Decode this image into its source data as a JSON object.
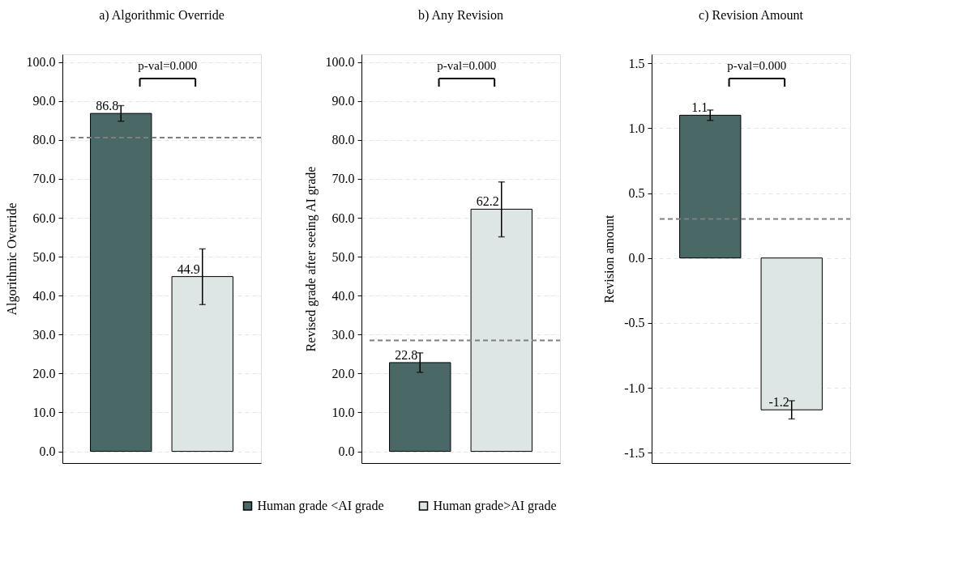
{
  "chart_data": [
    {
      "type": "bar",
      "title": "a) Algorithmic Override",
      "ylabel": "Algorithmic Override",
      "categories": [
        null
      ],
      "legend": "bottom",
      "grid": "y",
      "tick_labels": "y",
      "ylim": [
        -3,
        102
      ],
      "yticks": [
        {
          "value": 0,
          "label": "0.0"
        },
        {
          "value": 10,
          "label": "10.0"
        },
        {
          "value": 20,
          "label": "20.0"
        },
        {
          "value": 30,
          "label": "30.0"
        },
        {
          "value": 40,
          "label": "40.0"
        },
        {
          "value": 50,
          "label": "50.0"
        },
        {
          "value": 60,
          "label": "60.0"
        },
        {
          "value": 70,
          "label": "70.0"
        },
        {
          "value": 80,
          "label": "80.0"
        },
        {
          "value": 90,
          "label": "90.0"
        },
        {
          "value": 100,
          "label": "100.0"
        }
      ],
      "series": [
        {
          "name": "Human grade <AI grade",
          "color": "#4a6966",
          "values": [
            86.8
          ],
          "errors": [
            [
              84.8,
              88.8
            ]
          ],
          "value_labels": [
            "86.8"
          ]
        },
        {
          "name": "Human grade>AI grade",
          "color": "#dde6e4",
          "values": [
            44.9
          ],
          "errors": [
            [
              37.7,
              52.0
            ]
          ],
          "value_labels": [
            "44.9"
          ]
        }
      ],
      "ref_lines": [
        {
          "axis": "y",
          "value": 80.6,
          "color": "#7f7f7f",
          "line_style": "dashed"
        }
      ],
      "annotations": [
        "p-val=0.000"
      ]
    },
    {
      "type": "bar",
      "title": "b) Any Revision",
      "ylabel": "Revised grade after seeing AI grade",
      "categories": [
        null
      ],
      "legend": "bottom",
      "grid": "y",
      "tick_labels": "y",
      "ylim": [
        -3,
        102
      ],
      "yticks": [
        {
          "value": 0,
          "label": "0.0"
        },
        {
          "value": 10,
          "label": "10.0"
        },
        {
          "value": 20,
          "label": "20.0"
        },
        {
          "value": 30,
          "label": "30.0"
        },
        {
          "value": 40,
          "label": "40.0"
        },
        {
          "value": 50,
          "label": "50.0"
        },
        {
          "value": 60,
          "label": "60.0"
        },
        {
          "value": 70,
          "label": "70.0"
        },
        {
          "value": 80,
          "label": "80.0"
        },
        {
          "value": 90,
          "label": "90.0"
        },
        {
          "value": 100,
          "label": "100.0"
        }
      ],
      "series": [
        {
          "name": "Human grade <AI grade",
          "color": "#4a6966",
          "values": [
            22.8
          ],
          "errors": [
            [
              20.3,
              25.3
            ]
          ],
          "value_labels": [
            "22.8"
          ]
        },
        {
          "name": "Human grade>AI grade",
          "color": "#dde6e4",
          "values": [
            62.2
          ],
          "errors": [
            [
              55.1,
              69.2
            ]
          ],
          "value_labels": [
            "62.2"
          ]
        }
      ],
      "ref_lines": [
        {
          "axis": "y",
          "value": 28.5,
          "color": "#7f7f7f",
          "line_style": "dashed"
        }
      ],
      "annotations": [
        "p-val=0.000"
      ]
    },
    {
      "type": "bar",
      "title": "c) Revision Amount",
      "ylabel": "Revision amount",
      "categories": [
        null
      ],
      "legend": "bottom",
      "grid": "y",
      "tick_labels": "y",
      "ylim": [
        -1.58,
        1.57
      ],
      "yticks": [
        {
          "value": -1.5,
          "label": "-1.5"
        },
        {
          "value": -1,
          "label": "-1.0"
        },
        {
          "value": -0.5,
          "label": "-0.5"
        },
        {
          "value": 0,
          "label": "0.0"
        },
        {
          "value": 0.5,
          "label": "0.5"
        },
        {
          "value": 1,
          "label": "1.0"
        },
        {
          "value": 1.5,
          "label": "1.5"
        }
      ],
      "series": [
        {
          "name": "Human grade <AI grade",
          "color": "#4a6966",
          "values": [
            1.1
          ],
          "errors": [
            [
              1.06,
              1.14
            ]
          ],
          "value_labels": [
            "1.1"
          ]
        },
        {
          "name": "Human grade>AI grade",
          "color": "#dde6e4",
          "values": [
            -1.17
          ],
          "errors": [
            [
              -1.24,
              -1.1
            ]
          ],
          "value_labels": [
            "-1.2"
          ]
        }
      ],
      "ref_lines": [
        {
          "axis": "y",
          "value": 0.3,
          "color": "#7f7f7f",
          "line_style": "dashed"
        }
      ],
      "annotations": [
        "p-val=0.000"
      ]
    }
  ]
}
